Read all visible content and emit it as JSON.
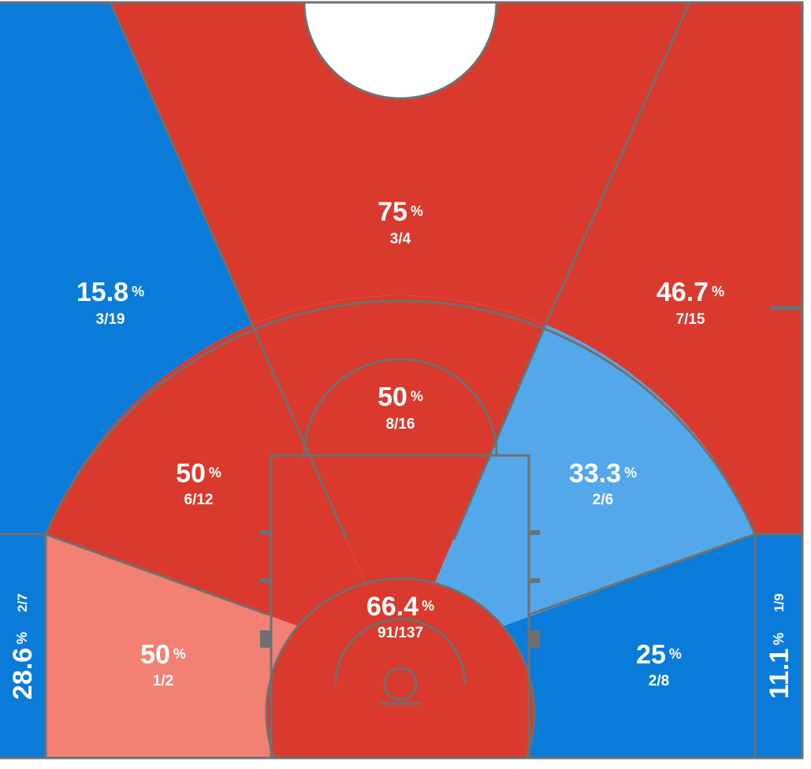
{
  "unit": "%",
  "zones": [
    {
      "pct": 15.8,
      "ratio": "3/19",
      "color": "#0a7bd8"
    },
    {
      "pct": 75,
      "ratio": "3/4",
      "color": "#d93a2d"
    },
    {
      "pct": 46.7,
      "ratio": "7/15",
      "color": "#d93a2d"
    },
    {
      "pct": 28.6,
      "ratio": "2/7",
      "color": "#0a7bd8"
    },
    {
      "pct": 11.1,
      "ratio": "1/9",
      "color": "#0a7bd8"
    },
    {
      "pct": 50,
      "ratio": "6/12",
      "color": "#d93a2d"
    },
    {
      "pct": 50,
      "ratio": "8/16",
      "color": "#d93a2d"
    },
    {
      "pct": 33.3,
      "ratio": "2/6",
      "color": "#52a8e8"
    },
    {
      "pct": 50,
      "ratio": "1/2",
      "color": "#f38173"
    },
    {
      "pct": 25,
      "ratio": "2/8",
      "color": "#0a7bd8"
    },
    {
      "pct": 66.4,
      "ratio": "91/137",
      "color": "#d93a2d"
    }
  ]
}
